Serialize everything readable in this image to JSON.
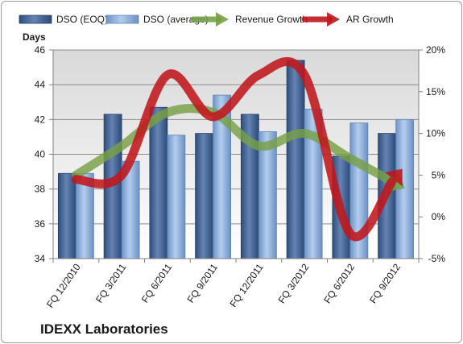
{
  "chart_data": {
    "type": "bar",
    "categories": [
      "FQ 12/2010",
      "FQ 3/2011",
      "FQ 6/2011",
      "FQ 9/2011",
      "FQ 12/2011",
      "FQ 3/2012",
      "FQ 6/2012",
      "FQ 9/2012"
    ],
    "series": [
      {
        "name": "DSO (EOQ)",
        "kind": "bar",
        "axis": "left",
        "color": "#4a6a9c",
        "values": [
          38.9,
          42.3,
          42.7,
          41.2,
          42.3,
          45.4,
          39.9,
          41.2
        ]
      },
      {
        "name": "DSO (average)",
        "kind": "bar",
        "axis": "left",
        "color": "#8fb3de",
        "values": [
          38.9,
          39.6,
          41.1,
          43.4,
          41.3,
          42.6,
          41.8,
          42.0
        ]
      },
      {
        "name": "Revenue Growth",
        "kind": "line",
        "axis": "right",
        "color": "#77a045",
        "values": [
          0.05,
          0.085,
          0.125,
          0.125,
          0.085,
          0.1,
          0.07,
          0.04
        ]
      },
      {
        "name": "AR Growth",
        "kind": "line",
        "axis": "right",
        "color": "#c0171c",
        "values": [
          0.045,
          0.05,
          0.17,
          0.12,
          0.17,
          0.17,
          -0.02,
          0.048
        ]
      }
    ],
    "y_left": {
      "label": "Days",
      "min": 34,
      "max": 46,
      "ticks": [
        "34",
        "36",
        "38",
        "40",
        "42",
        "44",
        "46"
      ]
    },
    "y_right": {
      "min": -0.05,
      "max": 0.2,
      "ticks": [
        "-5%",
        "0%",
        "5%",
        "10%",
        "15%",
        "20%"
      ]
    },
    "grid": true,
    "legend_position": "top",
    "company_label": "IDEXX Laboratories"
  }
}
